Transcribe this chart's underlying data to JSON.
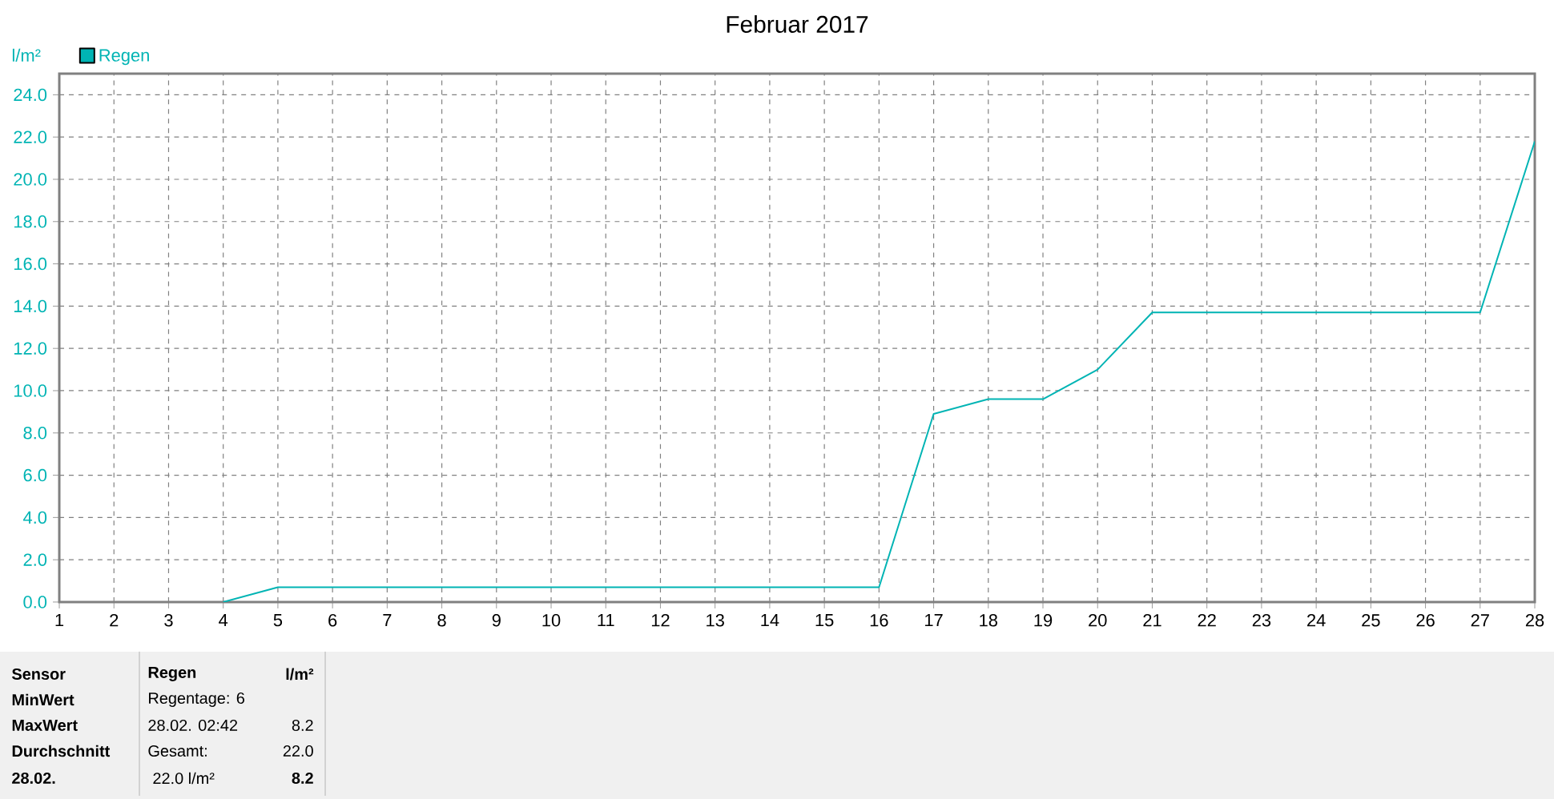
{
  "chart_data": {
    "type": "line",
    "title": "Februar 2017",
    "ylabel": "l/m²",
    "x": [
      4,
      5,
      6,
      7,
      8,
      9,
      10,
      11,
      12,
      13,
      14,
      15,
      16,
      17,
      18,
      19,
      20,
      21,
      22,
      23,
      24,
      25,
      26,
      27,
      28
    ],
    "series": [
      {
        "name": "Regen",
        "color": "#00b4b4",
        "values": [
          0,
          0.7,
          0.7,
          0.7,
          0.7,
          0.7,
          0.7,
          0.7,
          0.7,
          0.7,
          0.7,
          0.7,
          0.7,
          8.9,
          9.6,
          9.6,
          11.0,
          13.7,
          13.7,
          13.7,
          13.7,
          13.7,
          13.7,
          13.7,
          21.8
        ]
      }
    ],
    "xlim": [
      1,
      28
    ],
    "xticks": [
      1,
      2,
      3,
      4,
      5,
      6,
      7,
      8,
      9,
      10,
      11,
      12,
      13,
      14,
      15,
      16,
      17,
      18,
      19,
      20,
      21,
      22,
      23,
      24,
      25,
      26,
      27,
      28
    ],
    "ylim": [
      0,
      25
    ],
    "yticks": [
      {
        "value": 0,
        "label": "0.0"
      },
      {
        "value": 2,
        "label": "2.0"
      },
      {
        "value": 4,
        "label": "4.0"
      },
      {
        "value": 6,
        "label": "6.0"
      },
      {
        "value": 8,
        "label": "8.0"
      },
      {
        "value": 10,
        "label": "10.0"
      },
      {
        "value": 12,
        "label": "12.0"
      },
      {
        "value": 14,
        "label": "14.0"
      },
      {
        "value": 16,
        "label": "16.0"
      },
      {
        "value": 18,
        "label": "18.0"
      },
      {
        "value": 20,
        "label": "20.0"
      },
      {
        "value": 22,
        "label": "22.0"
      },
      {
        "value": 24,
        "label": "24.0"
      }
    ],
    "grid": true,
    "legend": "top left",
    "marker": "none",
    "line_style": "solid",
    "annotations": [
      "Sensor",
      "Regen",
      "l/m²",
      "MinWert",
      "Regentage: 6",
      "MaxWert",
      "28.02.  02:42",
      "8.2",
      "Durchschnitt",
      "Gesamt:",
      "22.0",
      "28.02.",
      "22.0 l/m²",
      "8.2"
    ]
  }
}
